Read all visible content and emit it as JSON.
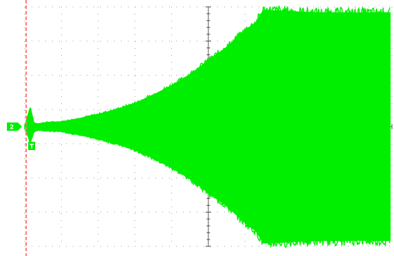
{
  "chart_data": {
    "type": "area",
    "title": "",
    "xlabel": "",
    "ylabel": "",
    "grid": true,
    "x_divisions": 10,
    "y_divisions": 7,
    "xlim": [
      0,
      10
    ],
    "ylim": [
      -3.5,
      3.5
    ],
    "trace_color": "#00ee00",
    "trigger_marker_color": "#ff7a7a",
    "series": [
      {
        "name": "",
        "x": [
          0.0,
          0.15,
          0.25,
          0.35,
          0.6,
          1.0,
          1.5,
          2.0,
          2.5,
          3.0,
          3.5,
          4.0,
          4.5,
          5.0,
          5.5,
          6.0,
          6.3,
          6.5,
          7.0,
          7.5,
          8.0,
          8.5,
          9.0,
          9.5,
          9.95
        ],
        "upper": [
          0.03,
          0.55,
          0.1,
          0.08,
          0.12,
          0.14,
          0.24,
          0.36,
          0.5,
          0.68,
          0.92,
          1.2,
          1.52,
          1.93,
          2.32,
          2.8,
          3.05,
          3.4,
          3.38,
          3.35,
          3.33,
          3.33,
          3.32,
          3.33,
          3.33
        ],
        "lower": [
          -0.03,
          -0.45,
          -0.15,
          -0.1,
          -0.12,
          -0.14,
          -0.24,
          -0.36,
          -0.5,
          -0.68,
          -0.92,
          -1.2,
          -1.52,
          -1.93,
          -2.32,
          -2.8,
          -3.05,
          -3.4,
          -3.38,
          -3.35,
          -3.33,
          -3.33,
          -3.32,
          -3.33,
          -3.33
        ]
      }
    ],
    "markers": {
      "channel_label": "2",
      "trigger_label": "T"
    }
  }
}
